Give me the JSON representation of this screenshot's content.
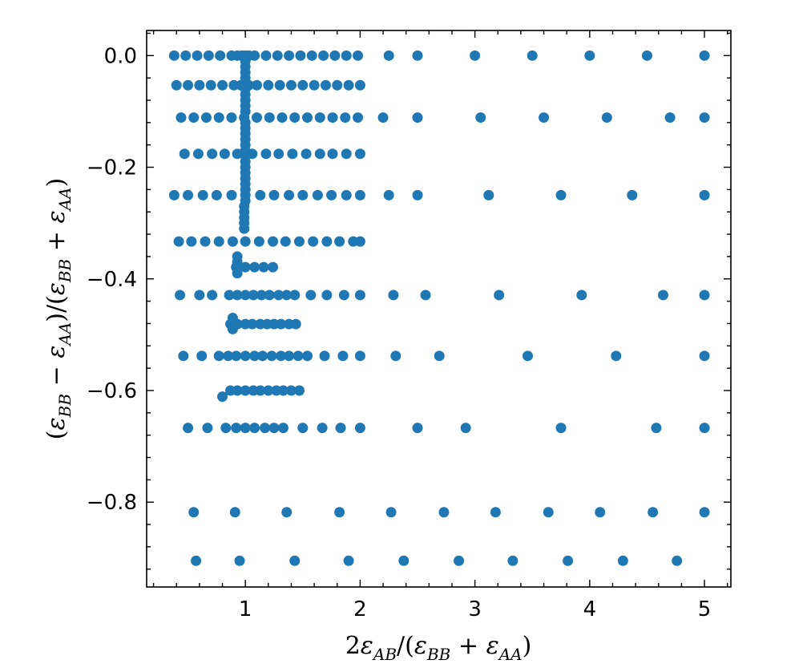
{
  "chart_data": {
    "type": "scatter",
    "title": "",
    "xlabel": "2ε_AB/(ε_BB + ε_AA)",
    "ylabel": "(ε_BB − ε_AA)/(ε_BB + ε_AA)",
    "xlim": [
      0.14,
      5.23
    ],
    "ylim": [
      -0.952,
      0.045
    ],
    "x_ticks": [
      1,
      2,
      3,
      4,
      5
    ],
    "y_ticks": [
      0.0,
      -0.2,
      -0.4,
      -0.6,
      -0.8
    ],
    "x_tick_labels": [
      "1",
      "2",
      "3",
      "4",
      "5"
    ],
    "y_tick_labels": [
      "0.0",
      "−0.2",
      "−0.4",
      "−0.6",
      "−0.8"
    ],
    "grid": false,
    "marker_color": "#1f77b4",
    "series": [
      {
        "rows": [
          {
            "y": 0.0,
            "x": [
              0.38,
              0.48,
              0.58,
              0.68,
              0.78,
              0.88,
              0.93,
              0.97,
              1.0,
              1.03,
              1.08,
              1.18,
              1.28,
              1.38,
              1.48,
              1.58,
              1.68,
              1.78,
              1.88,
              1.98,
              2.25,
              2.5,
              3.0,
              3.5,
              4.0,
              4.5,
              5.0
            ]
          },
          {
            "y": -0.053,
            "x": [
              0.4,
              0.5,
              0.6,
              0.7,
              0.8,
              0.9,
              0.96,
              1.0,
              1.03,
              1.1,
              1.2,
              1.3,
              1.4,
              1.5,
              1.6,
              1.7,
              1.8,
              1.9,
              2.0
            ]
          },
          {
            "y": -0.111,
            "x": [
              0.44,
              0.55,
              0.66,
              0.77,
              0.88,
              0.99,
              1.1,
              1.21,
              1.32,
              1.43,
              1.54,
              1.65,
              1.76,
              1.87,
              1.98,
              2.2,
              2.5,
              3.05,
              3.6,
              4.15,
              4.7,
              5.0
            ]
          },
          {
            "y": -0.176,
            "x": [
              0.47,
              0.59,
              0.71,
              0.82,
              0.93,
              1.0,
              1.06,
              1.18,
              1.29,
              1.41,
              1.53,
              1.65,
              1.76,
              1.88,
              2.0
            ]
          },
          {
            "y": -0.25,
            "x": [
              0.38,
              0.5,
              0.63,
              0.75,
              0.88,
              1.0,
              1.13,
              1.25,
              1.38,
              1.5,
              1.63,
              1.75,
              1.88,
              2.0,
              2.25,
              2.5,
              3.12,
              3.75,
              4.37,
              5.0
            ]
          },
          {
            "y": -0.333,
            "x": [
              0.42,
              0.53,
              0.65,
              0.77,
              0.89,
              1.0,
              1.12,
              1.24,
              1.35,
              1.47,
              1.59,
              1.71,
              1.82,
              1.94,
              2.0
            ]
          },
          {
            "y": -0.379,
            "x": [
              0.92,
              1.0,
              1.08,
              1.16,
              1.24
            ]
          },
          {
            "y": -0.429,
            "x": [
              0.43,
              0.6,
              0.71,
              0.86,
              0.93,
              1.0,
              1.07,
              1.14,
              1.21,
              1.29,
              1.36,
              1.43,
              1.57,
              1.71,
              1.86,
              2.0,
              2.29,
              2.57,
              3.21,
              3.93,
              4.64,
              5.0
            ]
          },
          {
            "y": -0.481,
            "x": [
              0.87,
              0.93,
              1.0,
              1.06,
              1.13,
              1.19,
              1.25,
              1.31,
              1.38,
              1.44
            ]
          },
          {
            "y": -0.538,
            "x": [
              0.46,
              0.62,
              0.77,
              0.85,
              0.92,
              1.0,
              1.08,
              1.15,
              1.23,
              1.31,
              1.38,
              1.46,
              1.54,
              1.69,
              1.85,
              2.0,
              2.31,
              2.69,
              3.46,
              4.23,
              5.0
            ]
          },
          {
            "y": -0.6,
            "x": [
              0.87,
              0.93,
              1.0,
              1.07,
              1.13,
              1.2,
              1.27,
              1.33,
              1.4,
              1.47
            ]
          },
          {
            "y": -0.611,
            "x": [
              0.8
            ]
          },
          {
            "y": -0.667,
            "x": [
              0.5,
              0.67,
              0.83,
              0.92,
              1.0,
              1.08,
              1.17,
              1.25,
              1.33,
              1.5,
              1.67,
              1.83,
              2.0,
              2.5,
              2.92,
              3.75,
              4.58,
              5.0
            ]
          },
          {
            "y": -0.818,
            "x": [
              0.55,
              0.91,
              1.36,
              1.82,
              2.27,
              2.73,
              3.18,
              3.64,
              4.09,
              4.55,
              5.0
            ]
          },
          {
            "y": -0.905,
            "x": [
              0.57,
              0.95,
              1.43,
              1.9,
              2.38,
              2.86,
              3.33,
              3.81,
              4.29,
              4.76
            ]
          },
          {
            "x_fixed": 1.0,
            "y": [
              -0.01,
              -0.02,
              -0.03,
              -0.04,
              -0.06,
              -0.07,
              -0.08,
              -0.09,
              -0.1,
              -0.12,
              -0.13,
              -0.14,
              -0.15,
              -0.16,
              -0.17,
              -0.18,
              -0.19,
              -0.2,
              -0.21,
              -0.22,
              -0.23,
              -0.24,
              -0.26
            ]
          },
          {
            "x_fixed": 0.99,
            "y": [
              -0.27,
              -0.28,
              -0.29,
              -0.3,
              -0.31
            ]
          },
          {
            "x_fixed": 0.93,
            "y": [
              -0.36,
              -0.37,
              -0.39
            ]
          },
          {
            "x_fixed": 0.89,
            "y": [
              -0.47,
              -0.49
            ]
          }
        ]
      }
    ]
  }
}
